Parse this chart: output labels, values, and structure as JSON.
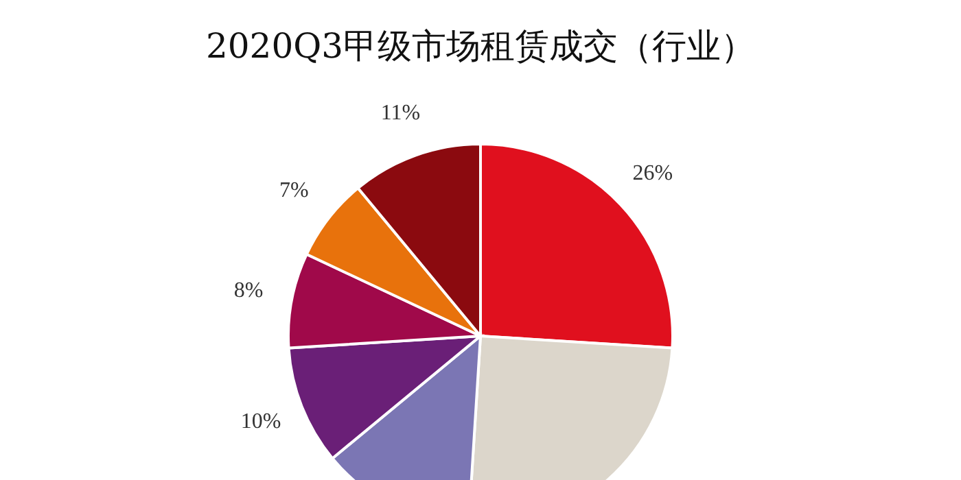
{
  "chart_data": {
    "type": "pie",
    "title": "2020Q3甲级市场租赁成交（行业）",
    "categories": [
      null,
      null,
      null,
      null,
      null,
      null,
      null
    ],
    "values": [
      26,
      25,
      13,
      10,
      8,
      7,
      11
    ],
    "colors": [
      "#e0101e",
      "#dcd6cb",
      "#7b76b4",
      "#6a1f77",
      "#a0094a",
      "#e8720c",
      "#8b0a0f"
    ],
    "value_labels": [
      "26%",
      null,
      null,
      "10%",
      "8%",
      "7%",
      "11%"
    ]
  }
}
